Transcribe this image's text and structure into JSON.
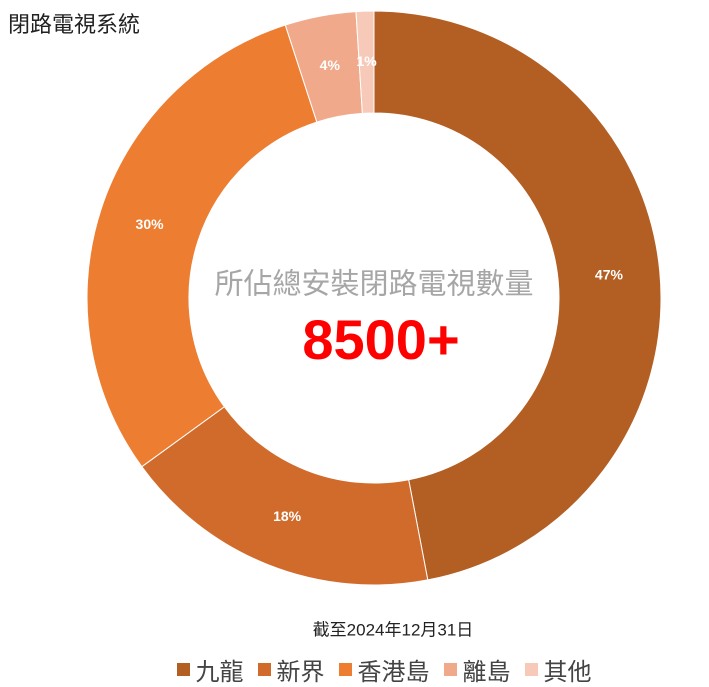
{
  "chart_data": {
    "type": "donut",
    "title": "閉路電視系統",
    "center_label": "所佔總安裝閉路電視數量",
    "center_value": "8500+",
    "note": "截至2024年12月31日",
    "categories": [
      "九龍",
      "新界",
      "香港島",
      "離島",
      "其他"
    ],
    "values": [
      47,
      18,
      30,
      4,
      1
    ],
    "value_labels": [
      "47%",
      "18%",
      "30%",
      "4%",
      "1%"
    ],
    "colors": [
      "#b35e22",
      "#d06b2c",
      "#ed7d31",
      "#f0a98a",
      "#f6c9b8"
    ],
    "legend": "bottom"
  }
}
